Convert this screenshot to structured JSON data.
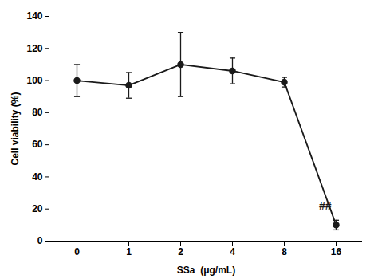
{
  "chart_data": {
    "type": "line",
    "xlabel": "SSa  (μg/mL)",
    "ylabel": "Cell viability (%)",
    "categories": [
      "0",
      "1",
      "2",
      "4",
      "8",
      "16"
    ],
    "values": [
      100,
      97,
      110,
      106,
      99,
      10
    ],
    "yerr": [
      10,
      8,
      20,
      8,
      3,
      3
    ],
    "color": "#1a1a1a",
    "marker": "circle",
    "ylim": [
      0,
      140
    ],
    "yticks": [
      0,
      20,
      40,
      60,
      80,
      100,
      120,
      140
    ],
    "grid": false,
    "annotations": [
      {
        "text": "##",
        "x": "16",
        "y": 22
      }
    ]
  }
}
